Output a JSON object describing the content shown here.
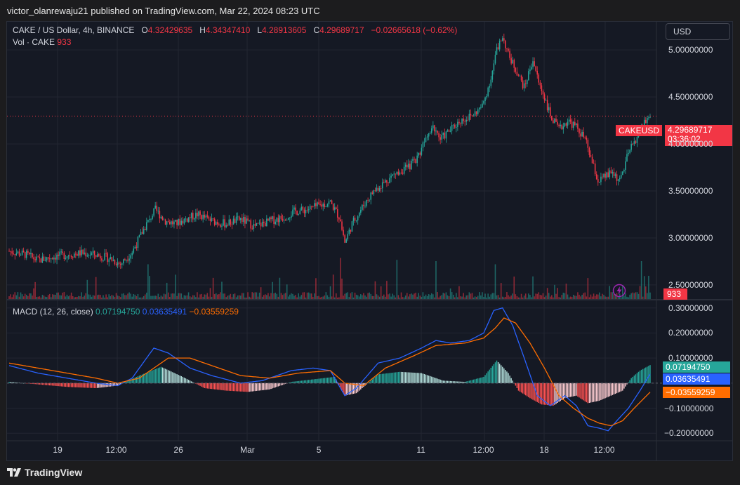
{
  "publisher": "victor_olanrewaju21 published on TradingView.com, Mar 22, 2024 08:23 UTC",
  "legend": {
    "symbol": "CAKE / US Dollar, 4h, BINANCE",
    "o_label": "O",
    "o_value": "4.32429635",
    "h_label": "H",
    "h_value": "4.34347410",
    "l_label": "L",
    "l_value": "4.28913605",
    "c_label": "C",
    "c_value": "4.29689717",
    "change": "−0.02665618 (−0.62%)",
    "vol_label": "Vol · CAKE",
    "vol_value": "933",
    "macd_label": "MACD (12, 26, close)",
    "macd_hist": "0.07194750",
    "macd_line": "0.03635491",
    "macd_signal": "−0.03559259"
  },
  "currency": "USD",
  "price_axis": [
    "5.00000000",
    "4.50000000",
    "4.00000000",
    "3.50000000",
    "3.00000000",
    "2.50000000"
  ],
  "macd_axis": [
    "0.30000000",
    "0.20000000",
    "0.10000000",
    "−0.10000000",
    "−0.20000000"
  ],
  "time_axis": [
    "19",
    "12:00",
    "26",
    "Mar",
    "5",
    "11",
    "12:00",
    "18",
    "12:00"
  ],
  "tags": {
    "symbol": "CAKEUSD",
    "price": "4.29689717",
    "countdown": "03:36:02",
    "volume": "933",
    "macd_hist": "0.07194750",
    "macd_line": "0.03635491",
    "macd_signal": "−0.03559259"
  },
  "brand": "TradingView",
  "colors": {
    "up": "#26a69a",
    "down": "#f23645",
    "macd_line": "#2962ff",
    "signal_line": "#ff6d00",
    "background": "#151924",
    "grid": "#232632"
  },
  "icons": [
    "flash-icon",
    "tradingview-logo-icon"
  ],
  "chart_data": {
    "type": "candlestick",
    "symbol": "CAKE / US Dollar",
    "interval": "4h",
    "exchange": "BINANCE",
    "price_range": [
      2.35,
      5.3
    ],
    "macd_range": [
      -0.23,
      0.33
    ],
    "price_path": [
      [
        0,
        2.86
      ],
      [
        12,
        2.82
      ],
      [
        20,
        2.76
      ],
      [
        30,
        2.8
      ],
      [
        40,
        2.82
      ],
      [
        50,
        2.84
      ],
      [
        60,
        2.82
      ],
      [
        70,
        2.78
      ],
      [
        77,
        2.72
      ],
      [
        85,
        2.85
      ],
      [
        90,
        3.0
      ],
      [
        95,
        3.15
      ],
      [
        101,
        3.3
      ],
      [
        108,
        3.18
      ],
      [
        115,
        3.15
      ],
      [
        122,
        3.2
      ],
      [
        130,
        3.25
      ],
      [
        140,
        3.18
      ],
      [
        150,
        3.15
      ],
      [
        160,
        3.2
      ],
      [
        170,
        3.12
      ],
      [
        180,
        3.18
      ],
      [
        190,
        3.22
      ],
      [
        197,
        3.28
      ],
      [
        205,
        3.3
      ],
      [
        214,
        3.34
      ],
      [
        222,
        3.38
      ],
      [
        229,
        3.2
      ],
      [
        232,
        2.95
      ],
      [
        237,
        3.15
      ],
      [
        245,
        3.35
      ],
      [
        252,
        3.5
      ],
      [
        260,
        3.6
      ],
      [
        268,
        3.7
      ],
      [
        276,
        3.75
      ],
      [
        283,
        3.88
      ],
      [
        288,
        4.1
      ],
      [
        293,
        4.2
      ],
      [
        298,
        4.05
      ],
      [
        305,
        4.15
      ],
      [
        312,
        4.25
      ],
      [
        320,
        4.3
      ],
      [
        327,
        4.4
      ],
      [
        333,
        4.7
      ],
      [
        337,
        5.0
      ],
      [
        341,
        5.15
      ],
      [
        345,
        4.95
      ],
      [
        350,
        4.8
      ],
      [
        356,
        4.6
      ],
      [
        362,
        4.9
      ],
      [
        366,
        4.65
      ],
      [
        370,
        4.5
      ],
      [
        374,
        4.3
      ],
      [
        380,
        4.15
      ],
      [
        386,
        4.25
      ],
      [
        392,
        4.18
      ],
      [
        398,
        4.05
      ],
      [
        403,
        3.8
      ],
      [
        407,
        3.6
      ],
      [
        412,
        3.65
      ],
      [
        417,
        3.7
      ],
      [
        422,
        3.6
      ],
      [
        428,
        3.9
      ],
      [
        433,
        4.05
      ],
      [
        438,
        4.2
      ],
      [
        443,
        4.3
      ]
    ],
    "volume_spikes": [
      [
        96,
        0.55
      ],
      [
        229,
        0.65
      ],
      [
        268,
        0.62
      ],
      [
        295,
        0.6
      ],
      [
        336,
        0.55
      ],
      [
        437,
        0.6
      ]
    ],
    "macd_hist_path": [
      [
        0,
        0.005
      ],
      [
        20,
        -0.005
      ],
      [
        40,
        -0.015
      ],
      [
        60,
        -0.02
      ],
      [
        75,
        -0.01
      ],
      [
        90,
        0.03
      ],
      [
        105,
        0.065
      ],
      [
        120,
        0.025
      ],
      [
        135,
        -0.02
      ],
      [
        150,
        -0.03
      ],
      [
        165,
        -0.035
      ],
      [
        180,
        -0.025
      ],
      [
        195,
        0.005
      ],
      [
        210,
        0.015
      ],
      [
        225,
        0.025
      ],
      [
        232,
        -0.05
      ],
      [
        240,
        -0.04
      ],
      [
        255,
        0.035
      ],
      [
        270,
        0.045
      ],
      [
        285,
        0.04
      ],
      [
        300,
        0.01
      ],
      [
        315,
        0.005
      ],
      [
        328,
        0.025
      ],
      [
        337,
        0.09
      ],
      [
        345,
        0.04
      ],
      [
        352,
        -0.03
      ],
      [
        360,
        -0.06
      ],
      [
        368,
        -0.085
      ],
      [
        376,
        -0.09
      ],
      [
        384,
        -0.06
      ],
      [
        392,
        -0.05
      ],
      [
        400,
        -0.08
      ],
      [
        408,
        -0.07
      ],
      [
        416,
        -0.05
      ],
      [
        424,
        -0.03
      ],
      [
        430,
        0.02
      ],
      [
        436,
        0.05
      ],
      [
        443,
        0.072
      ]
    ],
    "macd_line_path": [
      [
        0,
        0.07
      ],
      [
        20,
        0.04
      ],
      [
        40,
        0.02
      ],
      [
        60,
        0.0
      ],
      [
        75,
        -0.01
      ],
      [
        85,
        0.02
      ],
      [
        100,
        0.14
      ],
      [
        110,
        0.12
      ],
      [
        125,
        0.06
      ],
      [
        140,
        0.03
      ],
      [
        160,
        0.0
      ],
      [
        175,
        0.01
      ],
      [
        195,
        0.05
      ],
      [
        210,
        0.06
      ],
      [
        222,
        0.05
      ],
      [
        232,
        -0.05
      ],
      [
        240,
        -0.02
      ],
      [
        255,
        0.08
      ],
      [
        270,
        0.1
      ],
      [
        285,
        0.14
      ],
      [
        295,
        0.17
      ],
      [
        305,
        0.16
      ],
      [
        318,
        0.17
      ],
      [
        328,
        0.2
      ],
      [
        335,
        0.29
      ],
      [
        341,
        0.3
      ],
      [
        348,
        0.23
      ],
      [
        356,
        0.1
      ],
      [
        365,
        -0.05
      ],
      [
        374,
        -0.09
      ],
      [
        384,
        -0.05
      ],
      [
        392,
        -0.09
      ],
      [
        400,
        -0.17
      ],
      [
        408,
        -0.18
      ],
      [
        414,
        -0.19
      ],
      [
        420,
        -0.15
      ],
      [
        428,
        -0.1
      ],
      [
        436,
        -0.03
      ],
      [
        443,
        0.036
      ]
    ],
    "signal_line_path": [
      [
        0,
        0.08
      ],
      [
        20,
        0.06
      ],
      [
        40,
        0.04
      ],
      [
        60,
        0.02
      ],
      [
        75,
        0.0
      ],
      [
        90,
        0.02
      ],
      [
        110,
        0.1
      ],
      [
        125,
        0.1
      ],
      [
        140,
        0.07
      ],
      [
        160,
        0.03
      ],
      [
        180,
        0.02
      ],
      [
        200,
        0.04
      ],
      [
        222,
        0.05
      ],
      [
        232,
        0.0
      ],
      [
        245,
        -0.01
      ],
      [
        260,
        0.06
      ],
      [
        280,
        0.11
      ],
      [
        295,
        0.15
      ],
      [
        315,
        0.16
      ],
      [
        328,
        0.18
      ],
      [
        336,
        0.22
      ],
      [
        342,
        0.26
      ],
      [
        350,
        0.24
      ],
      [
        360,
        0.16
      ],
      [
        370,
        0.06
      ],
      [
        380,
        -0.05
      ],
      [
        390,
        -0.1
      ],
      [
        400,
        -0.14
      ],
      [
        408,
        -0.16
      ],
      [
        416,
        -0.17
      ],
      [
        424,
        -0.15
      ],
      [
        432,
        -0.1
      ],
      [
        443,
        -0.036
      ]
    ]
  }
}
